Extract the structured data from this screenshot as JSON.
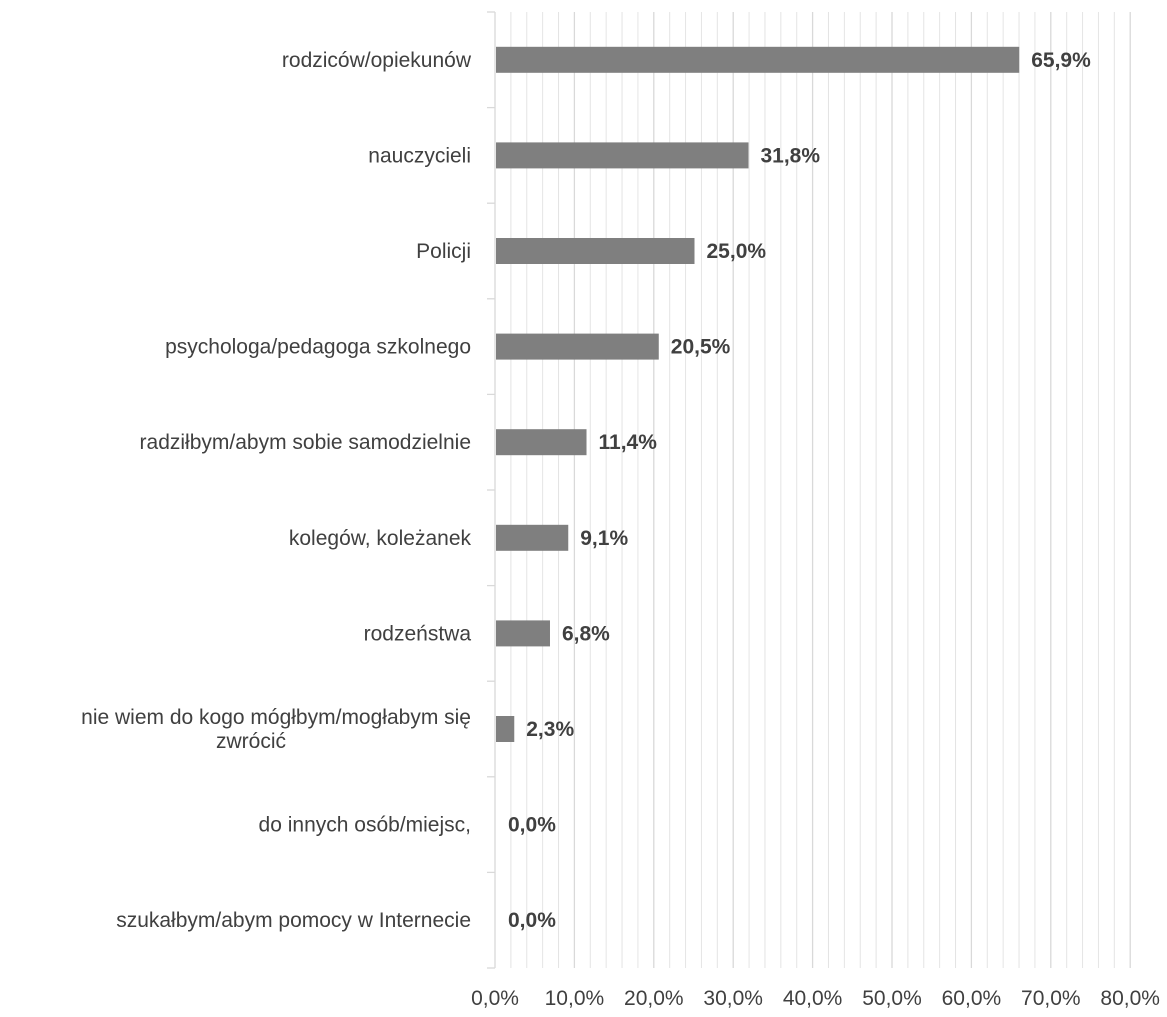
{
  "chart_data": {
    "type": "bar",
    "orientation": "horizontal",
    "categories": [
      "rodziców/opiekunów",
      "nauczycieli",
      "Policji",
      "psychologa/pedagoga szkolnego",
      "radziłbym/abym sobie samodzielnie",
      "kolegów, koleżanek",
      "rodzeństwa",
      "nie wiem do kogo mógłbym/mogłabym się zwrócić",
      "do innych osób/miejsc,",
      "szukałbym/abym pomocy w Internecie"
    ],
    "values": [
      65.9,
      31.8,
      25.0,
      20.5,
      11.4,
      9.1,
      6.8,
      2.3,
      0.0,
      0.0
    ],
    "data_labels": [
      "65,9%",
      "31,8%",
      "25,0%",
      "20,5%",
      "11,4%",
      "9,1%",
      "6,8%",
      "2,3%",
      "0,0%",
      "0,0%"
    ],
    "xlim": [
      0,
      80
    ],
    "x_ticks": [
      0,
      10,
      20,
      30,
      40,
      50,
      60,
      70,
      80
    ],
    "x_tick_labels": [
      "0,0%",
      "10,0%",
      "20,0%",
      "30,0%",
      "40,0%",
      "50,0%",
      "60,0%",
      "70,0%",
      "80,0%"
    ],
    "grid": "vertical, minor every 2%",
    "title": "",
    "xlabel": "",
    "ylabel": "",
    "colors": {
      "bar": "#7f7f7f",
      "grid": "#d9d9d9",
      "text": "#404040"
    }
  }
}
